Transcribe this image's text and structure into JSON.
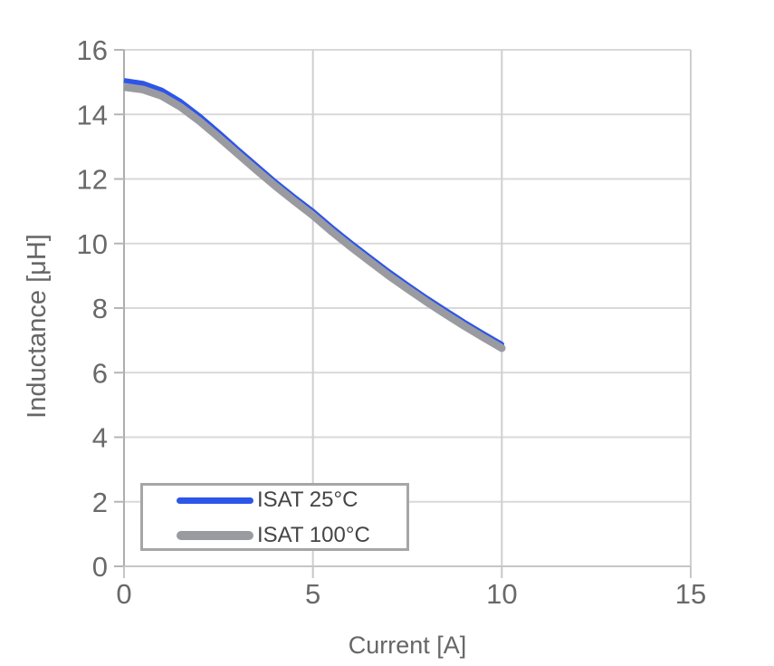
{
  "chart_data": {
    "type": "line",
    "title": "",
    "xlabel": "Current [A]",
    "ylabel": "Inductance [μH]",
    "xlim": [
      0,
      15
    ],
    "ylim": [
      0,
      16
    ],
    "xticks": [
      0,
      5,
      10,
      15
    ],
    "yticks": [
      0,
      2,
      4,
      6,
      8,
      10,
      12,
      14,
      16
    ],
    "grid": true,
    "legend_position": "bottom-left",
    "x": [
      0,
      0.5,
      1,
      1.5,
      2,
      2.5,
      3,
      3.5,
      4,
      4.5,
      5,
      5.5,
      6,
      6.5,
      7,
      7.5,
      8,
      8.5,
      9,
      9.5,
      10
    ],
    "series": [
      {
        "name": "ISAT 25°C",
        "color": "#2d55e8",
        "stroke_width": 5.5,
        "values": [
          15.05,
          14.96,
          14.75,
          14.4,
          13.95,
          13.45,
          12.93,
          12.42,
          11.92,
          11.45,
          11.0,
          10.5,
          10.03,
          9.58,
          9.14,
          8.72,
          8.32,
          7.94,
          7.57,
          7.22,
          6.88
        ]
      },
      {
        "name": "ISAT 100°C",
        "color": "#9a9ba0",
        "stroke_width": 8.5,
        "values": [
          14.85,
          14.77,
          14.57,
          14.23,
          13.79,
          13.3,
          12.79,
          12.28,
          11.79,
          11.32,
          10.87,
          10.37,
          9.9,
          9.45,
          9.01,
          8.6,
          8.2,
          7.82,
          7.45,
          7.1,
          6.76
        ]
      }
    ],
    "style_colors": {
      "h_grid": "#d9d9d9",
      "v_grid": "#cfcfcf",
      "y_axis": "#aeaeae",
      "x_axis": "#c6c6c6",
      "tick_label": "#696969",
      "axis_title": "#666666",
      "legend_border": "#a6a6a6",
      "legend_text": "#454545"
    }
  }
}
